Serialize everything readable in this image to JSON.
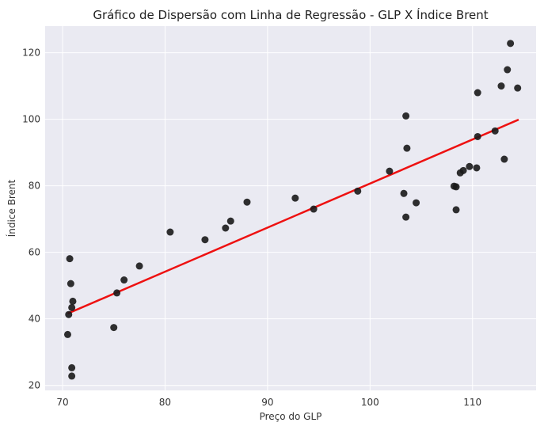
{
  "chart_data": {
    "type": "scatter",
    "title": "Gráfico de Dispersão com Linha de Regressão - GLP X Índice Brent",
    "xlabel": "Preço do GLP",
    "ylabel": "Índice Brent",
    "xlim": [
      68.3,
      116.2
    ],
    "ylim": [
      18.5,
      128
    ],
    "xticks": [
      70,
      80,
      90,
      100,
      110
    ],
    "yticks": [
      20,
      40,
      60,
      80,
      100,
      120
    ],
    "grid": true,
    "point_color": "#1a1a1a",
    "line_color": "#ee1111",
    "background_color": "#eaeaf2",
    "points": [
      [
        70.5,
        35.3
      ],
      [
        70.6,
        41.3
      ],
      [
        70.7,
        58.1
      ],
      [
        70.8,
        50.6
      ],
      [
        70.9,
        43.4
      ],
      [
        71.0,
        45.3
      ],
      [
        70.9,
        25.3
      ],
      [
        70.9,
        22.8
      ],
      [
        75.0,
        37.4
      ],
      [
        75.3,
        47.8
      ],
      [
        76.0,
        51.7
      ],
      [
        77.5,
        55.9
      ],
      [
        80.5,
        66.1
      ],
      [
        83.9,
        63.8
      ],
      [
        85.9,
        67.3
      ],
      [
        86.4,
        69.4
      ],
      [
        88.0,
        75.1
      ],
      [
        92.7,
        76.3
      ],
      [
        94.5,
        73.0
      ],
      [
        98.8,
        78.4
      ],
      [
        101.9,
        84.4
      ],
      [
        103.3,
        77.7
      ],
      [
        103.5,
        70.6
      ],
      [
        103.5,
        101.0
      ],
      [
        103.6,
        91.3
      ],
      [
        104.5,
        74.9
      ],
      [
        108.2,
        79.9
      ],
      [
        108.4,
        79.7
      ],
      [
        108.4,
        72.8
      ],
      [
        108.8,
        83.9
      ],
      [
        109.1,
        84.6
      ],
      [
        109.7,
        85.8
      ],
      [
        110.4,
        85.4
      ],
      [
        110.5,
        108.0
      ],
      [
        110.5,
        94.8
      ],
      [
        112.2,
        96.5
      ],
      [
        112.8,
        110.0
      ],
      [
        113.1,
        88.0
      ],
      [
        113.4,
        114.9
      ],
      [
        113.7,
        122.8
      ],
      [
        114.4,
        109.4
      ]
    ],
    "regression_line": {
      "x": [
        70.5,
        114.5
      ],
      "y": [
        41.6,
        99.9
      ]
    }
  }
}
